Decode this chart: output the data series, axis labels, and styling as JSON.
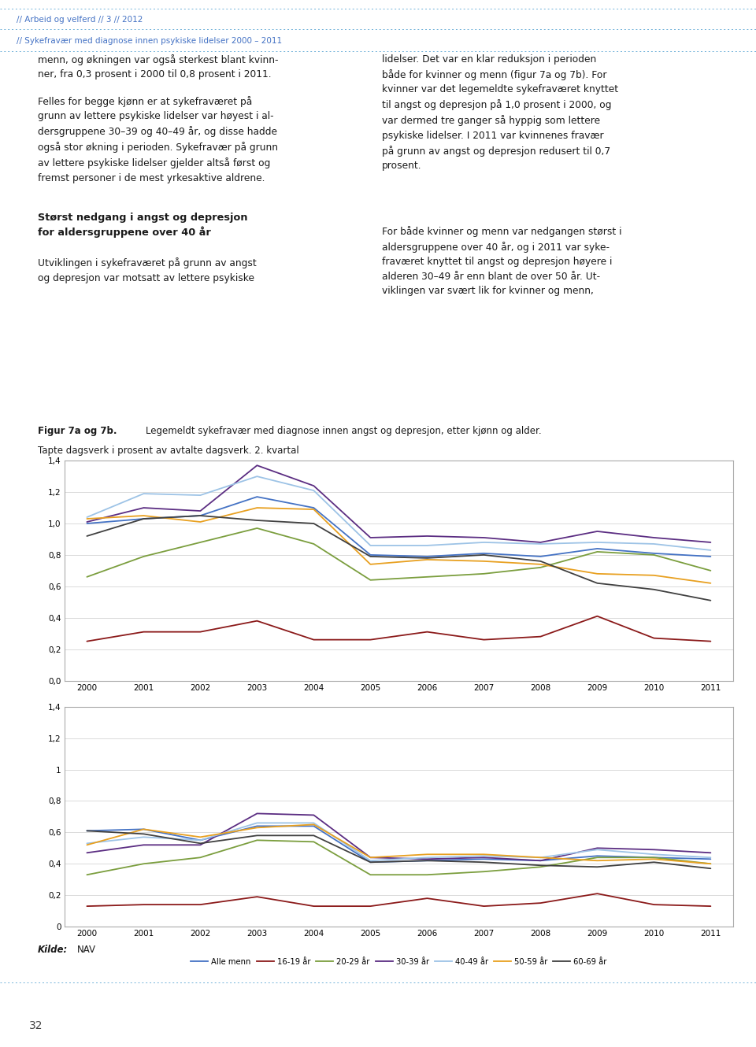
{
  "years": [
    2000,
    2001,
    2002,
    2003,
    2004,
    2005,
    2006,
    2007,
    2008,
    2009,
    2010,
    2011
  ],
  "women": {
    "alle_kvinner": [
      1.0,
      1.03,
      1.05,
      1.17,
      1.1,
      0.8,
      0.79,
      0.81,
      0.79,
      0.84,
      0.81,
      0.79
    ],
    "16_19": [
      0.25,
      0.31,
      0.31,
      0.38,
      0.26,
      0.26,
      0.31,
      0.26,
      0.28,
      0.41,
      0.27,
      0.25
    ],
    "20_29": [
      0.66,
      0.79,
      0.88,
      0.97,
      0.87,
      0.64,
      0.66,
      0.68,
      0.72,
      0.82,
      0.8,
      0.7
    ],
    "30_39": [
      1.01,
      1.1,
      1.08,
      1.37,
      1.24,
      0.91,
      0.92,
      0.91,
      0.88,
      0.95,
      0.91,
      0.88
    ],
    "40_49": [
      1.04,
      1.19,
      1.18,
      1.3,
      1.21,
      0.86,
      0.86,
      0.88,
      0.87,
      0.88,
      0.87,
      0.83
    ],
    "50_59": [
      1.03,
      1.05,
      1.01,
      1.1,
      1.09,
      0.74,
      0.77,
      0.76,
      0.74,
      0.68,
      0.67,
      0.62
    ],
    "60_69": [
      0.92,
      1.03,
      1.05,
      1.02,
      1.0,
      0.79,
      0.78,
      0.8,
      0.76,
      0.62,
      0.58,
      0.51
    ]
  },
  "men": {
    "alle_menn": [
      0.61,
      0.62,
      0.55,
      0.64,
      0.64,
      0.41,
      0.42,
      0.43,
      0.42,
      0.45,
      0.44,
      0.43
    ],
    "16_19": [
      0.13,
      0.14,
      0.14,
      0.19,
      0.13,
      0.13,
      0.18,
      0.13,
      0.15,
      0.21,
      0.14,
      0.13
    ],
    "20_29": [
      0.33,
      0.4,
      0.44,
      0.55,
      0.54,
      0.33,
      0.33,
      0.35,
      0.38,
      0.44,
      0.44,
      0.4
    ],
    "30_39": [
      0.47,
      0.52,
      0.52,
      0.72,
      0.71,
      0.44,
      0.43,
      0.44,
      0.42,
      0.5,
      0.49,
      0.47
    ],
    "40_49": [
      0.53,
      0.57,
      0.55,
      0.66,
      0.66,
      0.42,
      0.44,
      0.45,
      0.44,
      0.49,
      0.46,
      0.44
    ],
    "50_59": [
      0.52,
      0.62,
      0.57,
      0.63,
      0.65,
      0.44,
      0.46,
      0.46,
      0.44,
      0.42,
      0.43,
      0.4
    ],
    "60_69": [
      0.61,
      0.59,
      0.53,
      0.58,
      0.58,
      0.41,
      0.42,
      0.41,
      0.39,
      0.38,
      0.41,
      0.37
    ]
  },
  "colors": {
    "alle": "#4472C4",
    "16_19": "#8B1A1A",
    "20_29": "#7B9E3E",
    "30_39": "#5B2D82",
    "40_49": "#9DC3E6",
    "50_59": "#E8A020",
    "60_69": "#404040"
  },
  "legend_women": [
    "Alle kvinner",
    "16-19 år",
    "20-29 år",
    "30-39 år",
    "40-49 år",
    "50-59 år",
    "60-69 år"
  ],
  "legend_men": [
    "Alle menn",
    "16-19 år",
    "20-29 år",
    "30-39 år",
    "40-49 år",
    "50-59 år",
    "60-69 år"
  ],
  "header_line1": "// Arbeid og velferd // 3 // 2012",
  "header_line2": "// Sykefravær med diagnose innen psykiske lidelser 2000 – 2011",
  "page_number": "32",
  "yticks_top": [
    0.0,
    0.2,
    0.4,
    0.6,
    0.8,
    1.0,
    1.2,
    1.4
  ],
  "yticks_bottom": [
    0,
    0.2,
    0.4,
    0.6,
    0.8,
    1.0,
    1.2,
    1.4
  ],
  "background_color": "#FFFFFF",
  "chart_bg": "#FFFFFF",
  "grid_color": "#CCCCCC",
  "border_color": "#AAAAAA",
  "dot_color": "#6EB0D8",
  "header_color": "#4472C4"
}
